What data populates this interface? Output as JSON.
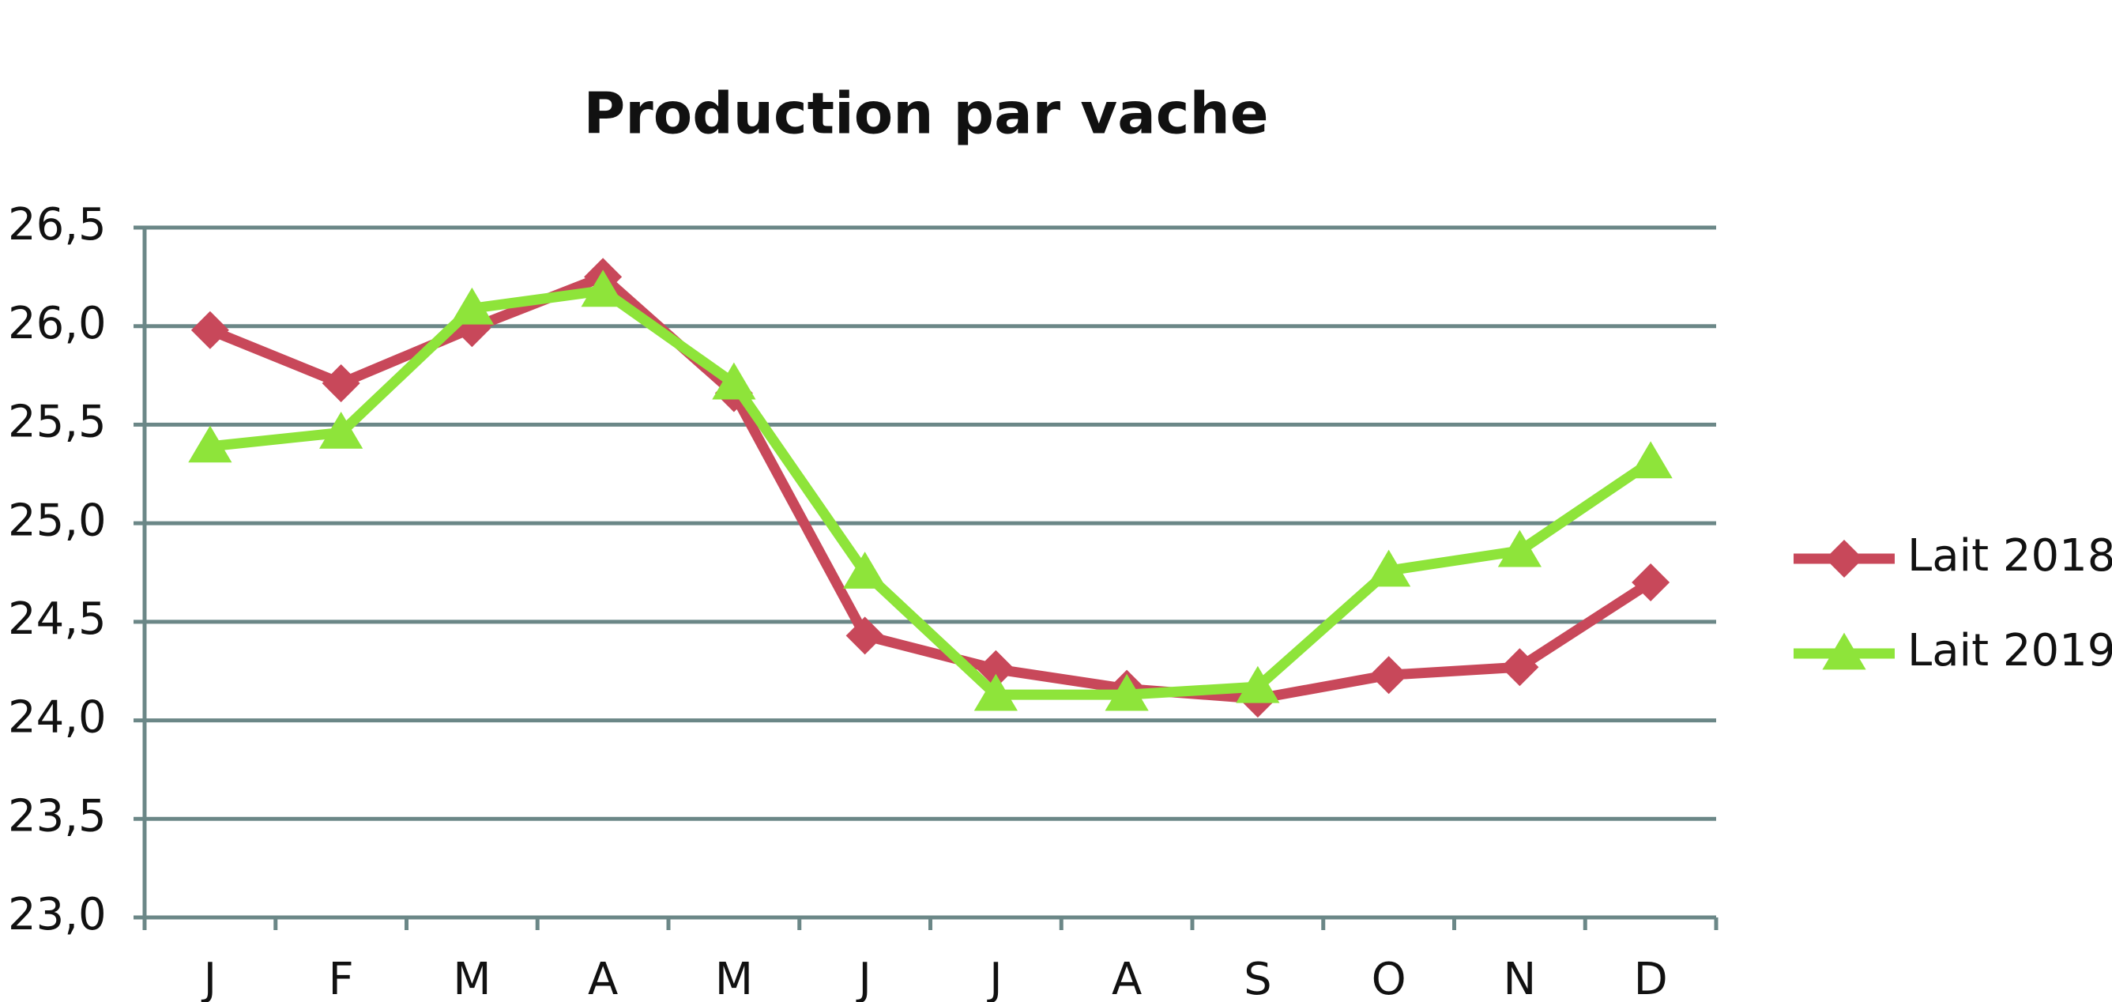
{
  "chart_data": {
    "type": "line",
    "title": "Production par vache",
    "categories": [
      "J",
      "F",
      "M",
      "A",
      "M",
      "J",
      "J",
      "A",
      "S",
      "O",
      "N",
      "D"
    ],
    "series": [
      {
        "name": "Lait 2018",
        "color": "#c8485a",
        "marker": "diamond",
        "values": [
          25.98,
          25.71,
          25.99,
          26.25,
          25.66,
          24.43,
          24.26,
          24.16,
          24.11,
          24.23,
          24.27,
          24.7
        ]
      },
      {
        "name": "Lait 2019",
        "color": "#8ee43a",
        "marker": "triangle",
        "values": [
          25.39,
          25.46,
          26.09,
          26.18,
          25.71,
          24.75,
          24.13,
          24.13,
          24.17,
          24.76,
          24.86,
          25.31
        ]
      }
    ],
    "ylim": [
      23.0,
      26.5
    ],
    "yticks": [
      {
        "value": 23.0,
        "label": "23,0"
      },
      {
        "value": 23.5,
        "label": "23,5"
      },
      {
        "value": 24.0,
        "label": "24,0"
      },
      {
        "value": 24.5,
        "label": "24,5"
      },
      {
        "value": 25.0,
        "label": "25,0"
      },
      {
        "value": 25.5,
        "label": "25,5"
      },
      {
        "value": 26.0,
        "label": "26,0"
      },
      {
        "value": 26.5,
        "label": "26,5"
      }
    ],
    "grid": true,
    "legend": "right"
  }
}
